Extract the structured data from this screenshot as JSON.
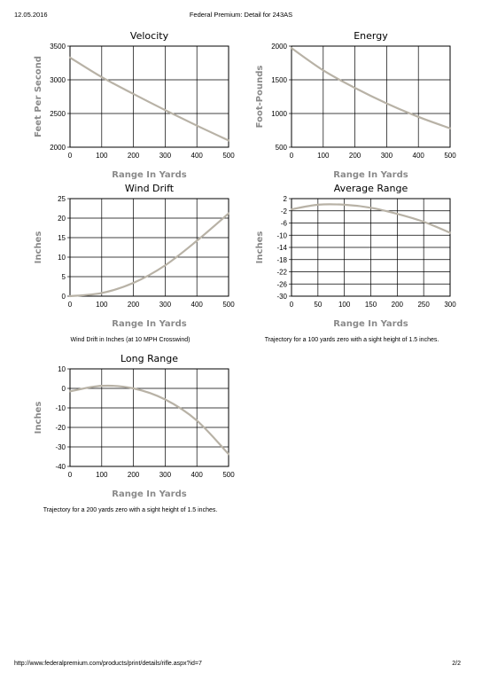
{
  "page": {
    "date": "12.05.2016",
    "title": "Federal Premium: Detail for 243AS",
    "footer_url": "http://www.federalpremium.com/products/print/details/rifle.aspx?id=7",
    "page_number": "2/2"
  },
  "captions": {
    "wind_drift": "Wind Drift in Inches (at 10 MPH Crosswind)",
    "average_range": "Trajectory for a 100 yards zero with a sight height of 1.5 inches.",
    "long_range": "Trajectory for a 200 yards zero with a sight height of 1.5 inches."
  },
  "colors": {
    "curve": "#b8b2a6",
    "grid": "#000000",
    "axis_label": "#8a8a8a"
  },
  "chart_data": [
    {
      "id": "velocity",
      "type": "line",
      "title": "Velocity",
      "xlabel": "Range In Yards",
      "ylabel": "Feet Per Second",
      "xlim": [
        0,
        500
      ],
      "ylim": [
        2000,
        3500
      ],
      "xticks": [
        0,
        100,
        200,
        300,
        400,
        500
      ],
      "yticks": [
        2000,
        2500,
        3000,
        3500
      ],
      "grid": true,
      "series": [
        {
          "x": [
            0,
            100,
            200,
            300,
            400,
            500
          ],
          "y": [
            3330,
            3040,
            2790,
            2550,
            2320,
            2100
          ]
        }
      ]
    },
    {
      "id": "energy",
      "type": "line",
      "title": "Energy",
      "xlabel": "Range In Yards",
      "ylabel": "Foot-Pounds",
      "xlim": [
        0,
        500
      ],
      "ylim": [
        500,
        2000
      ],
      "xticks": [
        0,
        100,
        200,
        300,
        400,
        500
      ],
      "yticks": [
        500,
        1000,
        1500,
        2000
      ],
      "grid": true,
      "series": [
        {
          "x": [
            0,
            100,
            200,
            300,
            400,
            500
          ],
          "y": [
            1970,
            1640,
            1380,
            1150,
            950,
            780
          ]
        }
      ]
    },
    {
      "id": "wind_drift",
      "type": "line",
      "title": "Wind Drift",
      "xlabel": "Range In Yards",
      "ylabel": "Inches",
      "xlim": [
        0,
        500
      ],
      "ylim": [
        0,
        25
      ],
      "xticks": [
        0,
        100,
        200,
        300,
        400,
        500
      ],
      "yticks": [
        0,
        5,
        10,
        15,
        20,
        25
      ],
      "grid": true,
      "series": [
        {
          "x": [
            0,
            100,
            200,
            300,
            400,
            500
          ],
          "y": [
            0,
            0.8,
            3.4,
            7.9,
            14.2,
            21.2
          ]
        }
      ]
    },
    {
      "id": "average_range",
      "type": "line",
      "title": "Average Range",
      "xlabel": "Range In Yards",
      "ylabel": "Inches",
      "xlim": [
        0,
        300
      ],
      "ylim": [
        -30,
        2
      ],
      "xticks": [
        0,
        50,
        100,
        150,
        200,
        250,
        300
      ],
      "yticks": [
        2,
        -2,
        -6,
        -10,
        -14,
        -18,
        -22,
        -26,
        -30
      ],
      "grid": true,
      "series": [
        {
          "x": [
            0,
            50,
            100,
            150,
            200,
            250,
            300
          ],
          "y": [
            -1.5,
            0,
            0,
            -1,
            -3,
            -5.6,
            -9.2
          ]
        }
      ]
    },
    {
      "id": "long_range",
      "type": "line",
      "title": "Long Range",
      "xlabel": "Range In Yards",
      "ylabel": "Inches",
      "xlim": [
        0,
        500
      ],
      "ylim": [
        -40,
        10
      ],
      "xticks": [
        0,
        100,
        200,
        300,
        400,
        500
      ],
      "yticks": [
        -40,
        -30,
        -20,
        -10,
        0,
        10
      ],
      "grid": true,
      "series": [
        {
          "x": [
            0,
            100,
            200,
            300,
            400,
            500
          ],
          "y": [
            -1.5,
            1.3,
            0,
            -5.7,
            -16.5,
            -33.7
          ]
        }
      ]
    }
  ]
}
